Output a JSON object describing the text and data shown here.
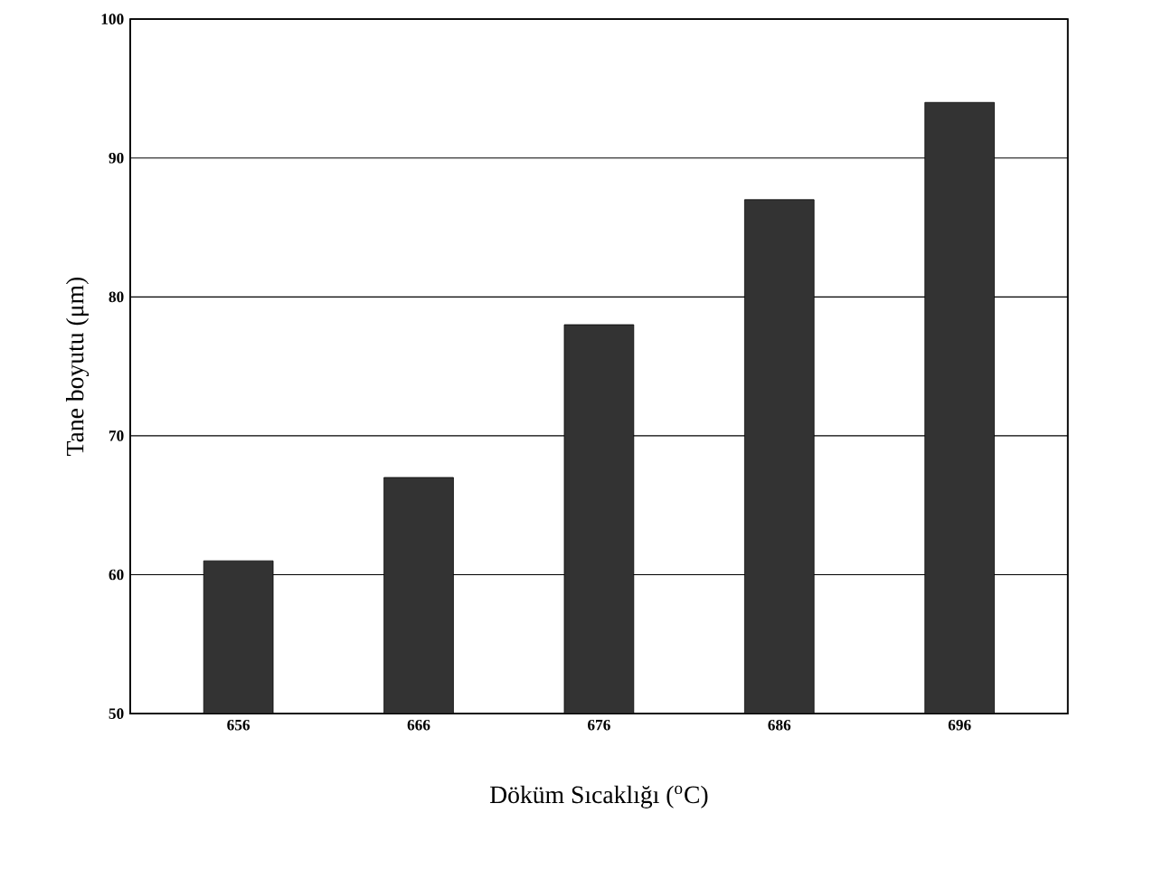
{
  "chart_data": {
    "type": "bar",
    "categories": [
      "656",
      "666",
      "676",
      "686",
      "696"
    ],
    "values": [
      61,
      67,
      78,
      87,
      94
    ],
    "color": "#333333",
    "xlabel": "Döküm Sıcaklığı ($^{o}$C)",
    "ylabel": "Tane  boyutu (μm)",
    "ylim": [
      50,
      100
    ],
    "yticks": [
      50,
      60,
      70,
      80,
      90,
      100
    ],
    "grid": "y"
  }
}
